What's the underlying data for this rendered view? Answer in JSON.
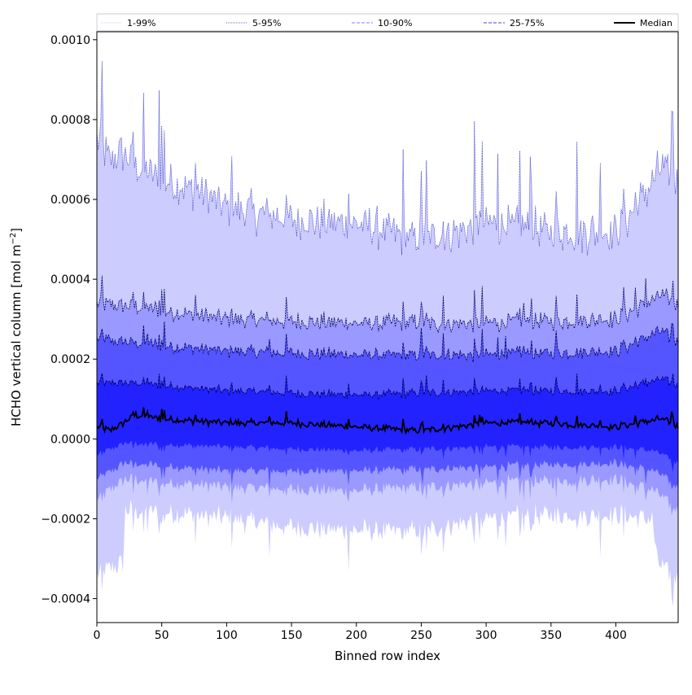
{
  "chart_data": {
    "type": "area",
    "title": "",
    "xlabel": "Binned row index",
    "ylabel_main": "HCHO vertical column [mol m",
    "ylabel_sup": "−2",
    "ylabel_close": "]",
    "xlim": [
      0,
      448
    ],
    "ylim": [
      -0.00046,
      0.00102
    ],
    "x_ticks": [
      0,
      50,
      100,
      150,
      200,
      250,
      300,
      350,
      400
    ],
    "x_tick_labels": [
      "0",
      "50",
      "100",
      "150",
      "200",
      "250",
      "300",
      "350",
      "400"
    ],
    "y_ticks": [
      -0.0004,
      -0.0002,
      0.0,
      0.0002,
      0.0004,
      0.0006,
      0.0008,
      0.001
    ],
    "y_tick_labels": [
      "−0.0004",
      "−0.0002",
      "0.0000",
      "0.0002",
      "0.0004",
      "0.0006",
      "0.0008",
      "0.0010"
    ],
    "legend_position": "top",
    "legend": [
      {
        "label": "1-99%",
        "style": "dotted",
        "color": "#c8c8ff"
      },
      {
        "label": "5-95%",
        "style": "dotted",
        "color": "#6464dc"
      },
      {
        "label": "10-90%",
        "style": "dashed",
        "color": "#8080ff"
      },
      {
        "label": "25-75%",
        "style": "dashed",
        "color": "#4040e0"
      },
      {
        "label": "Median",
        "style": "solid",
        "color": "#000000"
      }
    ],
    "band_colors": [
      "#ccccff",
      "#9999ff",
      "#5555ff",
      "#2222ff"
    ],
    "x_range": [
      0,
      448
    ],
    "profiles": {
      "note_units": "mol m-2",
      "p99_upper_keypoints": [
        [
          0,
          0.00075
        ],
        [
          10,
          0.0007
        ],
        [
          20,
          0.00072
        ],
        [
          30,
          0.00068
        ],
        [
          50,
          0.00065
        ],
        [
          80,
          0.00062
        ],
        [
          100,
          0.00058
        ],
        [
          150,
          0.00055
        ],
        [
          200,
          0.00054
        ],
        [
          250,
          0.0005
        ],
        [
          300,
          0.00054
        ],
        [
          350,
          0.00052
        ],
        [
          400,
          0.00052
        ],
        [
          420,
          0.0006
        ],
        [
          435,
          0.00068
        ],
        [
          448,
          0.00064
        ]
      ],
      "p99_lower_keypoints": [
        [
          0,
          -0.00034
        ],
        [
          20,
          -0.00031
        ],
        [
          22,
          -0.00018
        ],
        [
          50,
          -0.00018
        ],
        [
          100,
          -0.0002
        ],
        [
          150,
          -0.00022
        ],
        [
          200,
          -0.00023
        ],
        [
          250,
          -0.00023
        ],
        [
          300,
          -0.0002
        ],
        [
          350,
          -0.00019
        ],
        [
          400,
          -0.00019
        ],
        [
          428,
          -0.0002
        ],
        [
          432,
          -0.00031
        ],
        [
          448,
          -0.00035
        ]
      ],
      "p95_upper_keypoints": [
        [
          0,
          0.00034
        ],
        [
          30,
          0.00033
        ],
        [
          100,
          0.0003
        ],
        [
          200,
          0.00029
        ],
        [
          300,
          0.00029
        ],
        [
          400,
          0.0003
        ],
        [
          435,
          0.00036
        ],
        [
          448,
          0.00033
        ]
      ],
      "p95_lower_keypoints": [
        [
          0,
          -0.00015
        ],
        [
          22,
          -0.0001
        ],
        [
          100,
          -0.00012
        ],
        [
          200,
          -0.00013
        ],
        [
          300,
          -0.00011
        ],
        [
          400,
          -0.0001
        ],
        [
          430,
          -0.00013
        ],
        [
          448,
          -0.00018
        ]
      ],
      "p90_upper_keypoints": [
        [
          0,
          0.00025
        ],
        [
          30,
          0.00024
        ],
        [
          100,
          0.00022
        ],
        [
          200,
          0.00021
        ],
        [
          300,
          0.00021
        ],
        [
          400,
          0.00022
        ],
        [
          435,
          0.00027
        ],
        [
          448,
          0.00024
        ]
      ],
      "p90_lower_keypoints": [
        [
          0,
          -0.0001
        ],
        [
          22,
          -6e-05
        ],
        [
          100,
          -8e-05
        ],
        [
          200,
          -8e-05
        ],
        [
          300,
          -7e-05
        ],
        [
          400,
          -6e-05
        ],
        [
          430,
          -8e-05
        ],
        [
          448,
          -0.00012
        ]
      ],
      "p75_upper_keypoints": [
        [
          0,
          0.00014
        ],
        [
          30,
          0.00014
        ],
        [
          100,
          0.00012
        ],
        [
          200,
          0.00011
        ],
        [
          300,
          0.00012
        ],
        [
          400,
          0.00012
        ],
        [
          435,
          0.00015
        ],
        [
          448,
          0.00013
        ]
      ],
      "p75_lower_keypoints": [
        [
          0,
          -4e-05
        ],
        [
          22,
          -1e-05
        ],
        [
          100,
          -2e-05
        ],
        [
          200,
          -3e-05
        ],
        [
          300,
          -2e-05
        ],
        [
          400,
          -2e-05
        ],
        [
          430,
          -3e-05
        ],
        [
          448,
          -6e-05
        ]
      ],
      "median_keypoints": [
        [
          0,
          3e-05
        ],
        [
          10,
          2e-05
        ],
        [
          20,
          4e-05
        ],
        [
          30,
          6e-05
        ],
        [
          50,
          5e-05
        ],
        [
          100,
          4e-05
        ],
        [
          150,
          4e-05
        ],
        [
          200,
          3e-05
        ],
        [
          250,
          2e-05
        ],
        [
          300,
          4e-05
        ],
        [
          350,
          4e-05
        ],
        [
          400,
          3e-05
        ],
        [
          435,
          5e-05
        ],
        [
          448,
          3e-05
        ]
      ]
    }
  }
}
